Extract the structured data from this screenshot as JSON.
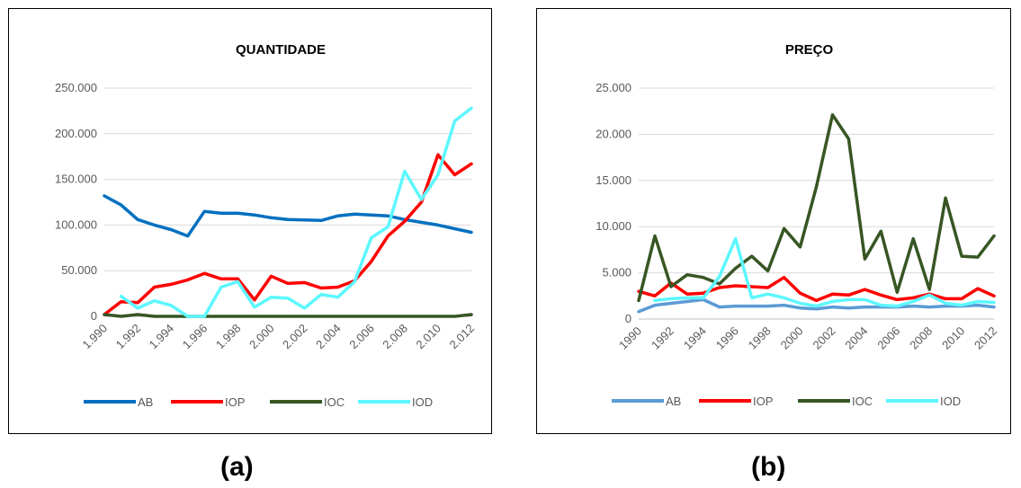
{
  "captions": {
    "a": "(a)",
    "b": "(b)"
  },
  "colors": {
    "AB_a": "#0070C0",
    "AB_b": "#5B9BD5",
    "IOP": "#FF0000",
    "IOC": "#375623",
    "IOD": "#5CF7FF",
    "grid": "#D9D9D9",
    "axis": "#BFBFBF",
    "text": "#595959"
  },
  "chart_data": [
    {
      "type": "line",
      "title": "QUANTIDADE",
      "xlabel": "",
      "ylabel": "",
      "ylim": [
        0,
        250000
      ],
      "yticks": [
        0,
        50000,
        100000,
        150000,
        200000,
        250000
      ],
      "ytick_labels": [
        "0",
        "50.000",
        "100.000",
        "150.000",
        "200.000",
        "250.000"
      ],
      "x": [
        1990,
        1991,
        1992,
        1993,
        1994,
        1995,
        1996,
        1997,
        1998,
        1999,
        2000,
        2001,
        2002,
        2003,
        2004,
        2005,
        2006,
        2007,
        2008,
        2009,
        2010,
        2011,
        2012
      ],
      "xtick_labels": [
        "1.990",
        "1.992",
        "1.994",
        "1.996",
        "1.998",
        "2.000",
        "2.002",
        "2.004",
        "2.006",
        "2.008",
        "2.010",
        "2.012"
      ],
      "grid": true,
      "legend": "bottom",
      "series": [
        {
          "name": "AB",
          "values": [
            132000,
            122000,
            106000,
            100000,
            95000,
            88000,
            115000,
            113000,
            113000,
            111000,
            108000,
            106000,
            105500,
            105000,
            110000,
            112000,
            111000,
            110000,
            106000,
            103000,
            100000,
            96000,
            92000
          ]
        },
        {
          "name": "IOP",
          "values": [
            2000,
            16000,
            15000,
            32000,
            35000,
            40000,
            47000,
            41000,
            41000,
            18000,
            44000,
            36000,
            37000,
            31000,
            32000,
            39000,
            60000,
            88000,
            104000,
            125000,
            177000,
            155000,
            167000
          ]
        },
        {
          "name": "IOC",
          "values": [
            2000,
            0,
            2000,
            0,
            0,
            0,
            0,
            0,
            0,
            0,
            0,
            0,
            0,
            0,
            0,
            0,
            0,
            0,
            0,
            0,
            0,
            0,
            2000
          ]
        },
        {
          "name": "IOD",
          "values": [
            null,
            22000,
            9000,
            17000,
            12000,
            0,
            0,
            32000,
            38000,
            10000,
            21000,
            20000,
            9000,
            24000,
            21000,
            38000,
            86000,
            98000,
            159000,
            128000,
            155000,
            214000,
            228000
          ]
        }
      ]
    },
    {
      "type": "line",
      "title": "PREÇO",
      "xlabel": "",
      "ylabel": "",
      "ylim": [
        0,
        25000
      ],
      "yticks": [
        0,
        5000,
        10000,
        15000,
        20000,
        25000
      ],
      "ytick_labels": [
        "0",
        "5.000",
        "10.000",
        "15.000",
        "20.000",
        "25.000"
      ],
      "x": [
        1990,
        1991,
        1992,
        1993,
        1994,
        1995,
        1996,
        1997,
        1998,
        1999,
        2000,
        2001,
        2002,
        2003,
        2004,
        2005,
        2006,
        2007,
        2008,
        2009,
        2010,
        2011,
        2012
      ],
      "xtick_labels": [
        "1990",
        "1992",
        "1994",
        "1996",
        "1998",
        "2000",
        "2002",
        "2004",
        "2006",
        "2008",
        "2010",
        "2012"
      ],
      "grid": true,
      "legend": "bottom",
      "series": [
        {
          "name": "AB",
          "values": [
            800,
            1500,
            1700,
            1900,
            2100,
            1300,
            1400,
            1400,
            1400,
            1500,
            1200,
            1100,
            1300,
            1200,
            1300,
            1300,
            1300,
            1400,
            1300,
            1400,
            1400,
            1500,
            1300
          ]
        },
        {
          "name": "IOP",
          "values": [
            3000,
            2500,
            3900,
            2700,
            2800,
            3400,
            3600,
            3500,
            3400,
            4500,
            2800,
            2000,
            2700,
            2600,
            3200,
            2600,
            2100,
            2300,
            2700,
            2200,
            2200,
            3300,
            2500
          ]
        },
        {
          "name": "IOC",
          "values": [
            2000,
            9000,
            3500,
            4800,
            4500,
            3800,
            5500,
            6800,
            5200,
            9800,
            7800,
            14300,
            22100,
            19500,
            6500,
            9500,
            2900,
            8700,
            3200,
            13100,
            6800,
            6700,
            9000
          ]
        },
        {
          "name": "IOD",
          "values": [
            null,
            2000,
            2200,
            2300,
            2300,
            4600,
            8700,
            2300,
            2700,
            2300,
            1700,
            1400,
            1900,
            2100,
            2100,
            1500,
            1400,
            1900,
            2600,
            1700,
            1500,
            1900,
            1800
          ]
        }
      ]
    }
  ]
}
